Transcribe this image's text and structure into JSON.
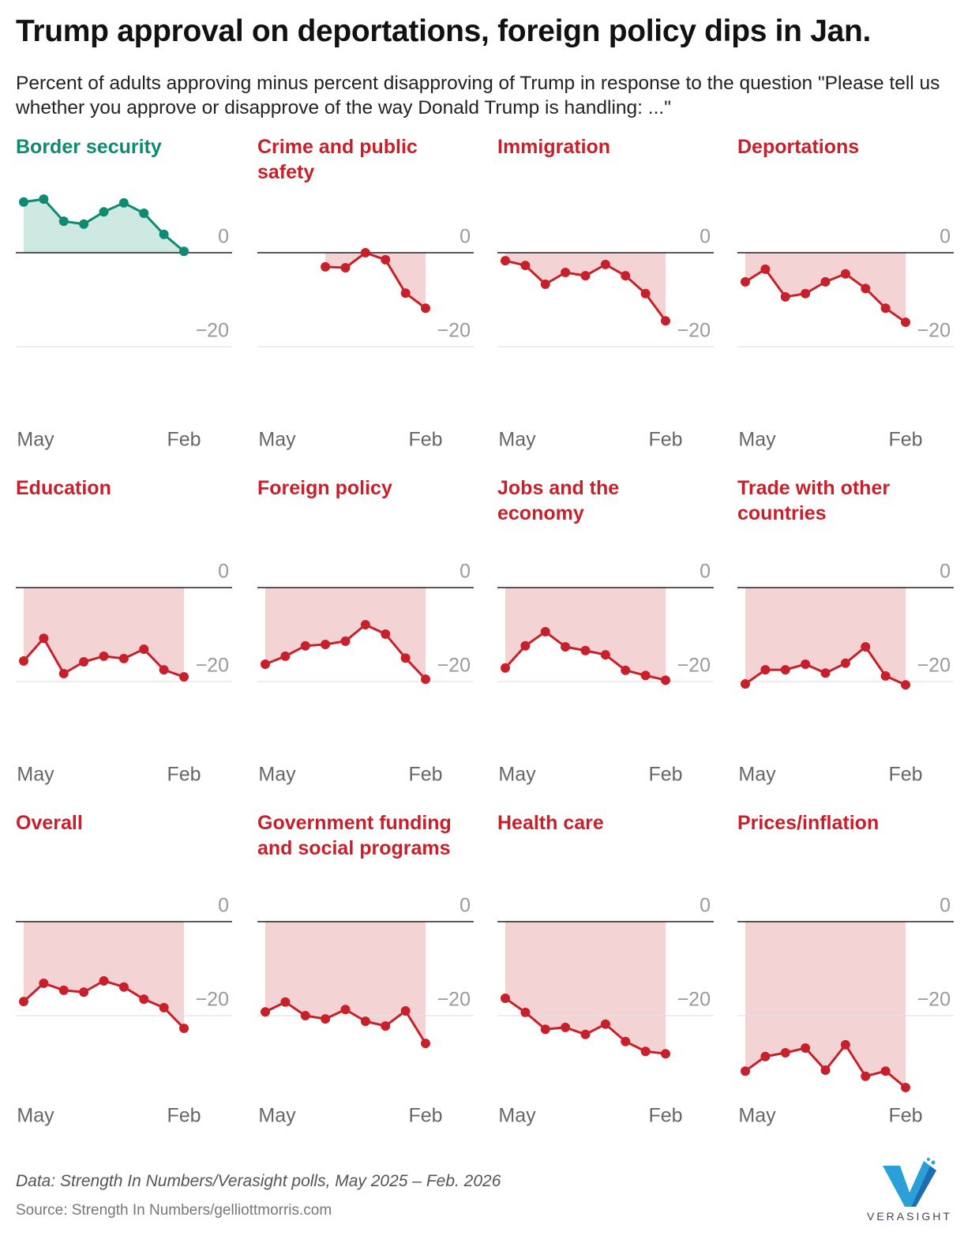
{
  "title": "Trump approval on deportations, foreign policy dips in Jan.",
  "subtitle": "Percent of adults approving minus percent disapproving of Trump in response to the question \"Please tell us whether you approve or disapprove of the way Donald Trump is handling: ...\"",
  "note": "Data: Strength In Numbers/Verasight polls, May 2025 – Feb. 2026",
  "source": "Source: Strength In Numbers/gelliottmorris.com",
  "logo": "VERASIGHT",
  "chart_data": [
    {
      "type": "line",
      "title": "Border security",
      "color": "#0f8a72",
      "fill": "#cde9e2",
      "categories": [
        "May",
        null,
        null,
        null,
        null,
        null,
        null,
        null,
        "Feb"
      ],
      "values": [
        10.8,
        11.4,
        6.7,
        6.1,
        8.7,
        10.6,
        8.4,
        3.9,
        0.3
      ],
      "ylim": [
        -36,
        12
      ],
      "yticks": [
        0,
        {
          "value": -20,
          "label": "−20"
        }
      ]
    },
    {
      "type": "line",
      "title": "Crime and public safety",
      "color": "#c8202a",
      "fill": "#f3d3d4",
      "categories": [
        "May",
        null,
        null,
        null,
        null,
        null,
        null,
        null,
        "Feb"
      ],
      "values": [
        null,
        null,
        null,
        -3.0,
        -3.2,
        0,
        -1.5,
        -8.6,
        -11.8
      ],
      "ylim": [
        -36,
        12
      ],
      "yticks": [
        0,
        {
          "value": -20,
          "label": "−20"
        }
      ]
    },
    {
      "type": "line",
      "title": "Immigration",
      "color": "#c8202a",
      "fill": "#f3d3d4",
      "categories": [
        "May",
        null,
        null,
        null,
        null,
        null,
        null,
        null,
        "Feb"
      ],
      "values": [
        -1.7,
        -2.7,
        -6.7,
        -4.2,
        -4.9,
        -2.5,
        -4.9,
        -8.7,
        -14.5
      ],
      "ylim": [
        -36,
        12
      ],
      "yticks": [
        0,
        {
          "value": -20,
          "label": "−20"
        }
      ]
    },
    {
      "type": "line",
      "title": "Deportations",
      "color": "#c8202a",
      "fill": "#f3d3d4",
      "categories": [
        "May",
        null,
        null,
        null,
        null,
        null,
        null,
        null,
        "Feb"
      ],
      "values": [
        -6.2,
        -3.5,
        -9.4,
        -8.7,
        -6.2,
        -4.5,
        -7.6,
        -11.8,
        -14.8
      ],
      "ylim": [
        -36,
        12
      ],
      "yticks": [
        0,
        {
          "value": -20,
          "label": "−20"
        }
      ]
    },
    {
      "type": "line",
      "title": "Education",
      "color": "#c8202a",
      "fill": "#f3d3d4",
      "categories": [
        "May",
        null,
        null,
        null,
        null,
        null,
        null,
        null,
        "Feb"
      ],
      "values": [
        -15.6,
        -10.8,
        -18.3,
        -15.8,
        -14.6,
        -15.1,
        -13.1,
        -17.5,
        -19.0
      ],
      "ylim": [
        -36,
        12
      ],
      "yticks": [
        0,
        {
          "value": -20,
          "label": "−20"
        }
      ]
    },
    {
      "type": "line",
      "title": "Foreign policy",
      "color": "#c8202a",
      "fill": "#f3d3d4",
      "categories": [
        "May",
        null,
        null,
        null,
        null,
        null,
        null,
        null,
        "Feb"
      ],
      "values": [
        -16.3,
        -14.6,
        -12.4,
        -12.1,
        -11.4,
        -7.9,
        -9.9,
        -15.0,
        -19.5
      ],
      "ylim": [
        -36,
        12
      ],
      "yticks": [
        0,
        {
          "value": -20,
          "label": "−20"
        }
      ]
    },
    {
      "type": "line",
      "title": "Jobs and the economy",
      "color": "#c8202a",
      "fill": "#f3d3d4",
      "categories": [
        "May",
        null,
        null,
        null,
        null,
        null,
        null,
        null,
        "Feb"
      ],
      "values": [
        -17.1,
        -12.4,
        -9.4,
        -12.6,
        -13.4,
        -14.3,
        -17.6,
        -18.7,
        -19.7
      ],
      "ylim": [
        -36,
        12
      ],
      "yticks": [
        0,
        {
          "value": -20,
          "label": "−20"
        }
      ]
    },
    {
      "type": "line",
      "title": "Trade with other countries",
      "color": "#c8202a",
      "fill": "#f3d3d4",
      "categories": [
        "May",
        null,
        null,
        null,
        null,
        null,
        null,
        null,
        "Feb"
      ],
      "values": [
        -20.5,
        -17.5,
        -17.5,
        -16.3,
        -18.2,
        -16.1,
        -12.6,
        -18.8,
        -20.7
      ],
      "ylim": [
        -36,
        12
      ],
      "yticks": [
        0,
        {
          "value": -20,
          "label": "−20"
        }
      ]
    },
    {
      "type": "line",
      "title": "Overall",
      "color": "#c8202a",
      "fill": "#f3d3d4",
      "categories": [
        "May",
        null,
        null,
        null,
        null,
        null,
        null,
        null,
        "Feb"
      ],
      "values": [
        -17.0,
        -13.1,
        -14.6,
        -15.0,
        -12.6,
        -13.9,
        -16.5,
        -18.3,
        -22.7
      ],
      "ylim": [
        -36,
        12
      ],
      "yticks": [
        0,
        {
          "value": -20,
          "label": "−20"
        }
      ]
    },
    {
      "type": "line",
      "title": "Government funding and social programs",
      "color": "#c8202a",
      "fill": "#f3d3d4",
      "categories": [
        "May",
        null,
        null,
        null,
        null,
        null,
        null,
        null,
        "Feb"
      ],
      "values": [
        -19.2,
        -17.1,
        -20.0,
        -20.7,
        -18.7,
        -21.2,
        -22.2,
        -19.0,
        -25.9
      ],
      "ylim": [
        -36,
        12
      ],
      "yticks": [
        0,
        {
          "value": -20,
          "label": "−20"
        }
      ]
    },
    {
      "type": "line",
      "title": "Health care",
      "color": "#c8202a",
      "fill": "#f3d3d4",
      "categories": [
        "May",
        null,
        null,
        null,
        null,
        null,
        null,
        null,
        "Feb"
      ],
      "values": [
        -16.3,
        -19.3,
        -22.9,
        -22.5,
        -24.0,
        -21.8,
        -25.5,
        -27.6,
        -28.1
      ],
      "ylim": [
        -36,
        12
      ],
      "yticks": [
        0,
        {
          "value": -20,
          "label": "−20"
        }
      ]
    },
    {
      "type": "line",
      "title": "Prices/inflation",
      "color": "#c8202a",
      "fill": "#f3d3d4",
      "categories": [
        "May",
        null,
        null,
        null,
        null,
        null,
        null,
        null,
        "Feb"
      ],
      "values": [
        -31.8,
        -28.7,
        -27.9,
        -26.9,
        -31.6,
        -26.2,
        -32.9,
        -31.8,
        -35.3
      ],
      "ylim": [
        -36,
        12
      ],
      "yticks": [
        0,
        {
          "value": -20,
          "label": "−20"
        }
      ]
    }
  ]
}
